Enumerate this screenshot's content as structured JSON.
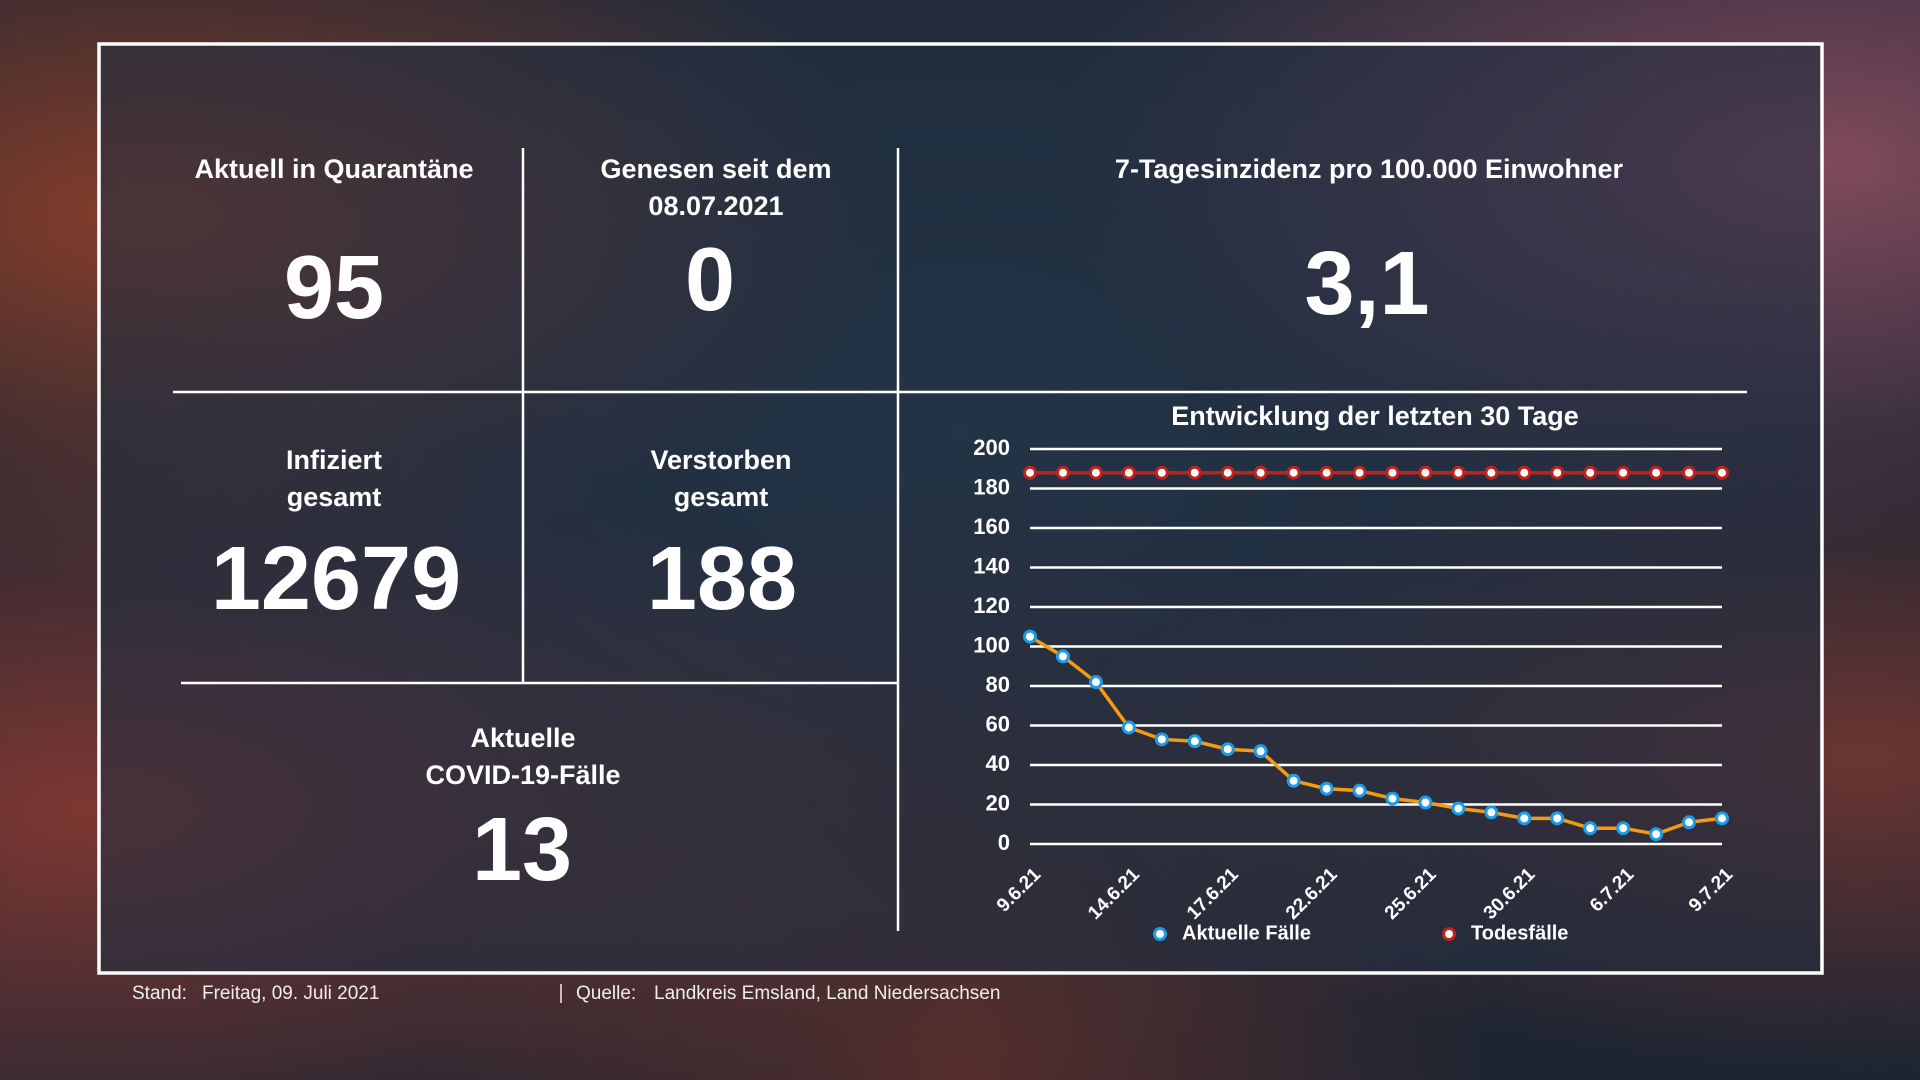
{
  "stats": [
    {
      "label": [
        "Aktuell in Quarantäne"
      ],
      "value": "95"
    },
    {
      "label": [
        "Genesen seit dem",
        "08.07.2021"
      ],
      "value": "0"
    },
    {
      "label": [
        "7-Tagesinzidenz pro 100.000 Einwohner"
      ],
      "value": "3,1"
    },
    {
      "label": [
        "Infiziert",
        "gesamt"
      ],
      "value": "12679"
    },
    {
      "label": [
        "Verstorben",
        "gesamt"
      ],
      "value": "188"
    },
    {
      "label": [
        "Aktuelle",
        "COVID-19-Fälle"
      ],
      "value": "13"
    }
  ],
  "footer": {
    "stand_label": "Stand:",
    "stand": "Freitag, 09. Juli 2021",
    "quelle_label": "Quelle:",
    "quelle": "Landkreis Emsland, Land Niedersachsen"
  },
  "chart_data": {
    "type": "line",
    "title": "Entwicklung der letzten 30 Tage",
    "categories": [
      "9.6.21",
      null,
      null,
      "14.6.21",
      null,
      null,
      "17.6.21",
      null,
      null,
      "22.6.21",
      null,
      null,
      "25.6.21",
      null,
      null,
      "30.6.21",
      null,
      null,
      "6.7.21",
      null,
      null,
      "9.7.21"
    ],
    "series": [
      {
        "name": "Aktuelle Fälle",
        "color": "#f39c12",
        "marker": "#1e9be6",
        "values": [
          105,
          95,
          82,
          59,
          53,
          52,
          48,
          47,
          32,
          28,
          27,
          23,
          21,
          18,
          16,
          13,
          13,
          8,
          8,
          5,
          11,
          13
        ]
      },
      {
        "name": "Todesfälle",
        "color": "#c0221b",
        "marker": "#c0221b",
        "values": [
          188,
          188,
          188,
          188,
          188,
          188,
          188,
          188,
          188,
          188,
          188,
          188,
          188,
          188,
          188,
          188,
          188,
          188,
          188,
          188,
          188,
          188
        ]
      }
    ],
    "ylim": [
      0,
      200
    ],
    "yticks": [
      0,
      20,
      40,
      60,
      80,
      100,
      120,
      140,
      160,
      180,
      200
    ],
    "grid": true
  }
}
